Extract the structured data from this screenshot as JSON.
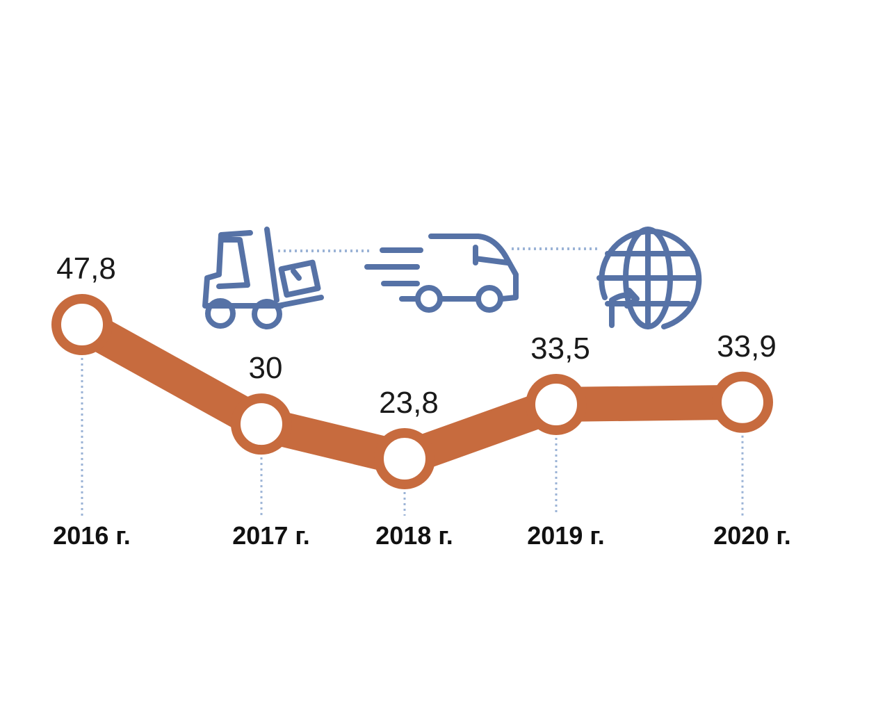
{
  "colors": {
    "line": "#C76B3E",
    "node_fill": "#FFFFFF",
    "icon": "#5672A6",
    "guide": "#9BB3D6"
  },
  "icons": [
    "forklift-icon",
    "delivery-van-icon",
    "globe-refresh-icon"
  ],
  "chart_data": {
    "type": "line",
    "categories": [
      "2016 г.",
      "2017 г.",
      "2018 г.",
      "2019 г.",
      "2020 г."
    ],
    "values": [
      47.8,
      30,
      23.8,
      33.5,
      33.9
    ],
    "value_labels": [
      "47,8",
      "30",
      "23,8",
      "33,5",
      "33,9"
    ],
    "title": "",
    "xlabel": "",
    "ylabel": "",
    "grid": false
  }
}
